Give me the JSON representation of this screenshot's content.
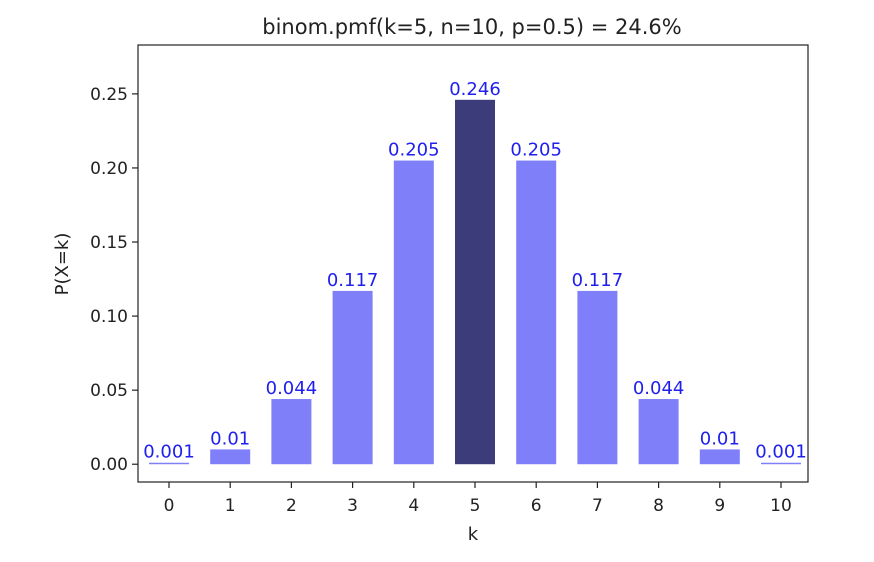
{
  "chart_data": {
    "type": "bar",
    "title": "binom.pmf(k=5, n=10, p=0.5) = 24.6%",
    "xlabel": "k",
    "ylabel": "P(X=k)",
    "categories": [
      "0",
      "1",
      "2",
      "3",
      "4",
      "5",
      "6",
      "7",
      "8",
      "9",
      "10"
    ],
    "values": [
      0.001,
      0.01,
      0.044,
      0.117,
      0.205,
      0.246,
      0.205,
      0.117,
      0.044,
      0.01,
      0.001
    ],
    "data_labels": [
      "0.001",
      "0.01",
      "0.044",
      "0.117",
      "0.205",
      "0.246",
      "0.205",
      "0.117",
      "0.044",
      "0.01",
      "0.001"
    ],
    "highlight_category": "5",
    "y_ticks": [
      "0.00",
      "0.05",
      "0.10",
      "0.15",
      "0.20",
      "0.25"
    ],
    "ylim": [
      -0.012,
      0.283
    ],
    "grid": false,
    "legend": "none",
    "colors": {
      "bar": "#7f7ff9",
      "highlight": "#3c3c7a",
      "data_label": "#2020ee",
      "axis": "#222222"
    }
  }
}
